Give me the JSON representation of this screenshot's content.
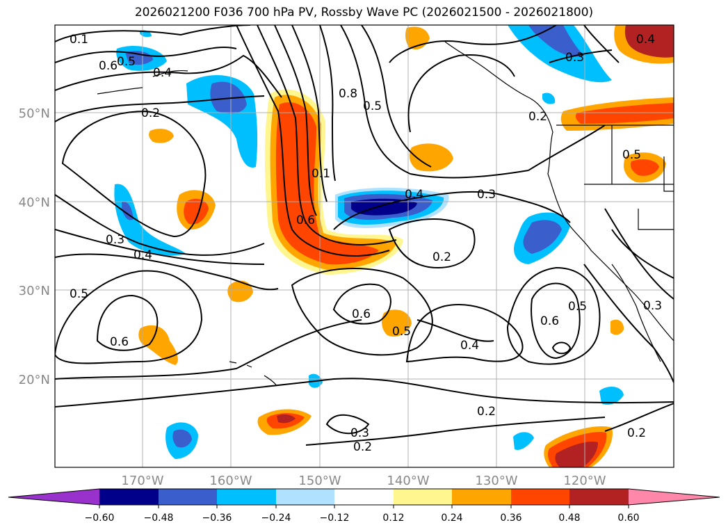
{
  "title": "2026021200 F036 700 hPa PV, Rossby Wave PC (2026021500 - 2026021800)",
  "map": {
    "lon_range": [
      -180,
      -110
    ],
    "lat_range": [
      10,
      60
    ],
    "lat_labels": [
      "50°N",
      "40°N",
      "30°N",
      "20°N"
    ],
    "lon_labels": [
      "170°W",
      "160°W",
      "150°W",
      "140°W",
      "130°W",
      "120°W"
    ]
  },
  "contour_labels": [
    "0.1",
    "0.6",
    "0.5",
    "0.4",
    "0.2",
    "0.3",
    "0.4",
    "0.5",
    "0.6",
    "0.8",
    "0.5",
    "0.1",
    "0.6",
    "0.4",
    "0.3",
    "0.2",
    "0.6",
    "0.5",
    "0.4",
    "0.3",
    "0.2",
    "0.2",
    "0.5",
    "0.6",
    "0.5",
    "0.4",
    "0.3",
    "0.2",
    "0.3",
    "0.2"
  ],
  "colorbar": {
    "ticks": [
      "−0.60",
      "−0.48",
      "−0.36",
      "−0.24",
      "−0.12",
      "0.12",
      "0.24",
      "0.36",
      "0.48",
      "0.60"
    ],
    "colors": {
      "under": "#9932cc",
      "c1": "#00008b",
      "c2": "#3a5fcd",
      "c3": "#00bfff",
      "c4": "#b0e2ff",
      "c5": "#ffffff",
      "c6": "#fff68f",
      "c7": "#ffa500",
      "c8": "#ff4500",
      "c9": "#b22222",
      "over": "#ff88aa"
    }
  }
}
